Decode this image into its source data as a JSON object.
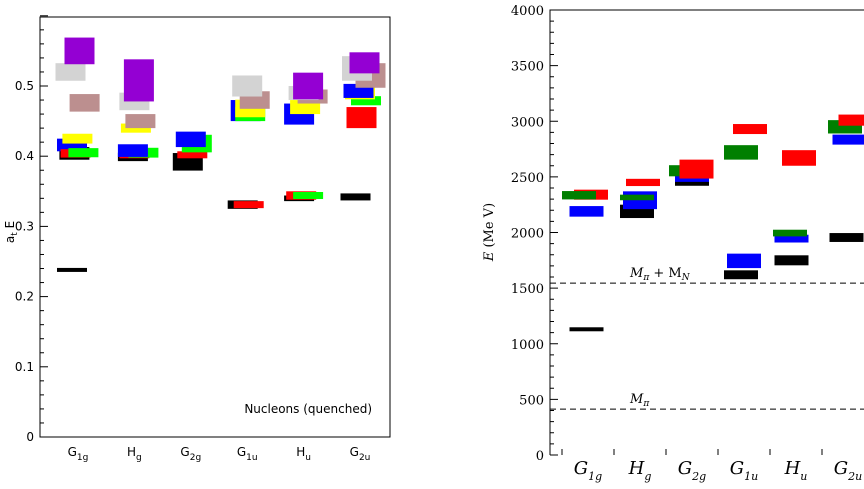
{
  "chart_data": [
    {
      "type": "bar",
      "ylabel": "a_t E",
      "annotation": "Nucleons (quenched)",
      "ylim": [
        0,
        0.6
      ],
      "yticks": [
        "0",
        "0.1",
        "0.2",
        "0.3",
        "0.4",
        "0.5"
      ],
      "categories": [
        {
          "label": "G",
          "sub": "1g"
        },
        {
          "label": "H",
          "sub": "g"
        },
        {
          "label": "G",
          "sub": "2g"
        },
        {
          "label": "G",
          "sub": "1u"
        },
        {
          "label": "H",
          "sub": "u"
        },
        {
          "label": "G",
          "sub": "2u"
        }
      ],
      "levels": [
        {
          "cat": 0,
          "off": -0.2,
          "y": 0.238,
          "h": 0.005,
          "color": "#000000"
        },
        {
          "cat": 0,
          "off": -0.12,
          "y": 0.404,
          "h": 0.018,
          "color": "#000000"
        },
        {
          "cat": 0,
          "off": -0.2,
          "y": 0.416,
          "h": 0.018,
          "color": "#0000ff"
        },
        {
          "cat": 0,
          "off": -0.08,
          "y": 0.404,
          "h": 0.012,
          "color": "#ff0000"
        },
        {
          "cat": 0,
          "off": 0.18,
          "y": 0.405,
          "h": 0.013,
          "color": "#00ff00"
        },
        {
          "cat": 0,
          "off": -0.02,
          "y": 0.425,
          "h": 0.014,
          "color": "#ffff00"
        },
        {
          "cat": 0,
          "off": 0.22,
          "y": 0.476,
          "h": 0.025,
          "color": "#bc8f8f"
        },
        {
          "cat": 0,
          "off": -0.25,
          "y": 0.52,
          "h": 0.025,
          "color": "#d3d3d3"
        },
        {
          "cat": 0,
          "off": 0.05,
          "y": 0.55,
          "h": 0.038,
          "color": "#9400d3"
        },
        {
          "cat": 1,
          "off": -0.05,
          "y": 0.399,
          "h": 0.012,
          "color": "#000000"
        },
        {
          "cat": 1,
          "off": 0.0,
          "y": 0.402,
          "h": 0.01,
          "color": "#ff0000"
        },
        {
          "cat": 1,
          "off": 0.3,
          "y": 0.405,
          "h": 0.014,
          "color": "#00ff00"
        },
        {
          "cat": 1,
          "off": -0.05,
          "y": 0.408,
          "h": 0.018,
          "color": "#0000ff"
        },
        {
          "cat": 1,
          "off": 0.05,
          "y": 0.44,
          "h": 0.013,
          "color": "#ffff00"
        },
        {
          "cat": 1,
          "off": 0.2,
          "y": 0.45,
          "h": 0.02,
          "color": "#bc8f8f"
        },
        {
          "cat": 1,
          "off": 0.0,
          "y": 0.478,
          "h": 0.025,
          "color": "#d3d3d3"
        },
        {
          "cat": 1,
          "off": 0.15,
          "y": 0.508,
          "h": 0.06,
          "color": "#9400d3"
        },
        {
          "cat": 2,
          "off": -0.1,
          "y": 0.392,
          "h": 0.025,
          "color": "#000000"
        },
        {
          "cat": 2,
          "off": 0.05,
          "y": 0.402,
          "h": 0.01,
          "color": "#ff0000"
        },
        {
          "cat": 2,
          "off": 0.2,
          "y": 0.418,
          "h": 0.025,
          "color": "#00ff00"
        },
        {
          "cat": 2,
          "off": 0.0,
          "y": 0.424,
          "h": 0.022,
          "color": "#0000ff"
        },
        {
          "cat": 3,
          "off": -0.15,
          "y": 0.331,
          "h": 0.012,
          "color": "#000000"
        },
        {
          "cat": 3,
          "off": 0.05,
          "y": 0.331,
          "h": 0.01,
          "color": "#ff0000"
        },
        {
          "cat": 3,
          "off": -0.05,
          "y": 0.465,
          "h": 0.03,
          "color": "#0000ff"
        },
        {
          "cat": 3,
          "off": 0.1,
          "y": 0.46,
          "h": 0.02,
          "color": "#00ff00"
        },
        {
          "cat": 3,
          "off": 0.1,
          "y": 0.468,
          "h": 0.025,
          "color": "#ffff00"
        },
        {
          "cat": 3,
          "off": 0.25,
          "y": 0.48,
          "h": 0.025,
          "color": "#bc8f8f"
        },
        {
          "cat": 3,
          "off": 0.0,
          "y": 0.5,
          "h": 0.03,
          "color": "#d3d3d3"
        },
        {
          "cat": 4,
          "off": -0.15,
          "y": 0.34,
          "h": 0.008,
          "color": "#000000"
        },
        {
          "cat": 4,
          "off": -0.08,
          "y": 0.344,
          "h": 0.012,
          "color": "#ff0000"
        },
        {
          "cat": 4,
          "off": 0.15,
          "y": 0.344,
          "h": 0.01,
          "color": "#00ff00"
        },
        {
          "cat": 4,
          "off": -0.15,
          "y": 0.46,
          "h": 0.03,
          "color": "#0000ff"
        },
        {
          "cat": 4,
          "off": 0.05,
          "y": 0.47,
          "h": 0.02,
          "color": "#ffff00"
        },
        {
          "cat": 4,
          "off": 0.3,
          "y": 0.485,
          "h": 0.02,
          "color": "#bc8f8f"
        },
        {
          "cat": 4,
          "off": 0.0,
          "y": 0.49,
          "h": 0.02,
          "color": "#d3d3d3"
        },
        {
          "cat": 4,
          "off": 0.15,
          "y": 0.5,
          "h": 0.038,
          "color": "#9400d3"
        },
        {
          "cat": 5,
          "off": -0.15,
          "y": 0.342,
          "h": 0.01,
          "color": "#000000"
        },
        {
          "cat": 5,
          "off": 0.05,
          "y": 0.455,
          "h": 0.03,
          "color": "#ff0000"
        },
        {
          "cat": 5,
          "off": 0.2,
          "y": 0.479,
          "h": 0.013,
          "color": "#00ff00"
        },
        {
          "cat": 5,
          "off": 0.0,
          "y": 0.49,
          "h": 0.018,
          "color": "#ffff00"
        },
        {
          "cat": 5,
          "off": -0.05,
          "y": 0.493,
          "h": 0.02,
          "color": "#0000ff"
        },
        {
          "cat": 5,
          "off": 0.35,
          "y": 0.515,
          "h": 0.035,
          "color": "#bc8f8f"
        },
        {
          "cat": 5,
          "off": -0.1,
          "y": 0.525,
          "h": 0.035,
          "color": "#d3d3d3"
        },
        {
          "cat": 5,
          "off": 0.15,
          "y": 0.533,
          "h": 0.03,
          "color": "#9400d3"
        }
      ]
    },
    {
      "type": "bar",
      "ylabel": "E (MeV)",
      "ylim": [
        0,
        4000
      ],
      "yticks": [
        "0",
        "500",
        "1000",
        "1500",
        "2000",
        "2500",
        "3000",
        "3500",
        "4000"
      ],
      "categories": [
        {
          "label": "G",
          "sub": "1g"
        },
        {
          "label": "H",
          "sub": "g"
        },
        {
          "label": "G",
          "sub": "2g"
        },
        {
          "label": "G",
          "sub": "1u"
        },
        {
          "label": "H",
          "sub": "u"
        },
        {
          "label": "G",
          "sub": "2u"
        }
      ],
      "thresholds": [
        {
          "value": 1545,
          "label": "M",
          "sub": "π",
          "extra": " + M",
          "extra_sub": "N"
        },
        {
          "value": 412,
          "label": "M",
          "sub": "π"
        }
      ],
      "levels": [
        {
          "cat": 0,
          "off": -0.05,
          "y": 1130,
          "h": 28,
          "color": "#000000"
        },
        {
          "cat": 0,
          "off": -0.05,
          "y": 2190,
          "h": 95,
          "color": "#0000ff"
        },
        {
          "cat": 0,
          "off": 0.1,
          "y": 2340,
          "h": 90,
          "color": "#ff0000"
        },
        {
          "cat": 0,
          "off": -0.3,
          "y": 2335,
          "h": 75,
          "color": "#007f00"
        },
        {
          "cat": 1,
          "off": -0.1,
          "y": 2190,
          "h": 120,
          "color": "#000000"
        },
        {
          "cat": 1,
          "off": 0.0,
          "y": 2290,
          "h": 160,
          "color": "#0000ff"
        },
        {
          "cat": 1,
          "off": -0.1,
          "y": 2315,
          "h": 50,
          "color": "#007f00"
        },
        {
          "cat": 1,
          "off": 0.1,
          "y": 2450,
          "h": 65,
          "color": "#ff0000"
        },
        {
          "cat": 2,
          "off": 0.0,
          "y": 2460,
          "h": 80,
          "color": "#000000"
        },
        {
          "cat": 2,
          "off": 0.0,
          "y": 2500,
          "h": 90,
          "color": "#0000ff"
        },
        {
          "cat": 2,
          "off": -0.2,
          "y": 2555,
          "h": 100,
          "color": "#007f00"
        },
        {
          "cat": 2,
          "off": 0.15,
          "y": 2570,
          "h": 170,
          "color": "#ff0000"
        },
        {
          "cat": 3,
          "off": -0.1,
          "y": 1620,
          "h": 80,
          "color": "#000000"
        },
        {
          "cat": 3,
          "off": 0.0,
          "y": 1745,
          "h": 130,
          "color": "#0000ff"
        },
        {
          "cat": 3,
          "off": -0.1,
          "y": 2720,
          "h": 130,
          "color": "#007f00"
        },
        {
          "cat": 3,
          "off": 0.2,
          "y": 2930,
          "h": 90,
          "color": "#ff0000"
        },
        {
          "cat": 4,
          "off": -0.15,
          "y": 1750,
          "h": 90,
          "color": "#000000"
        },
        {
          "cat": 4,
          "off": -0.15,
          "y": 1945,
          "h": 70,
          "color": "#0000ff"
        },
        {
          "cat": 4,
          "off": -0.2,
          "y": 1995,
          "h": 60,
          "color": "#007f00"
        },
        {
          "cat": 4,
          "off": 0.1,
          "y": 2670,
          "h": 140,
          "color": "#ff0000"
        },
        {
          "cat": 5,
          "off": -0.05,
          "y": 1955,
          "h": 80,
          "color": "#000000"
        },
        {
          "cat": 5,
          "off": 0.05,
          "y": 2835,
          "h": 90,
          "color": "#0000ff"
        },
        {
          "cat": 5,
          "off": -0.1,
          "y": 2950,
          "h": 120,
          "color": "#007f00"
        },
        {
          "cat": 5,
          "off": 0.25,
          "y": 3010,
          "h": 100,
          "color": "#ff0000"
        }
      ]
    }
  ]
}
